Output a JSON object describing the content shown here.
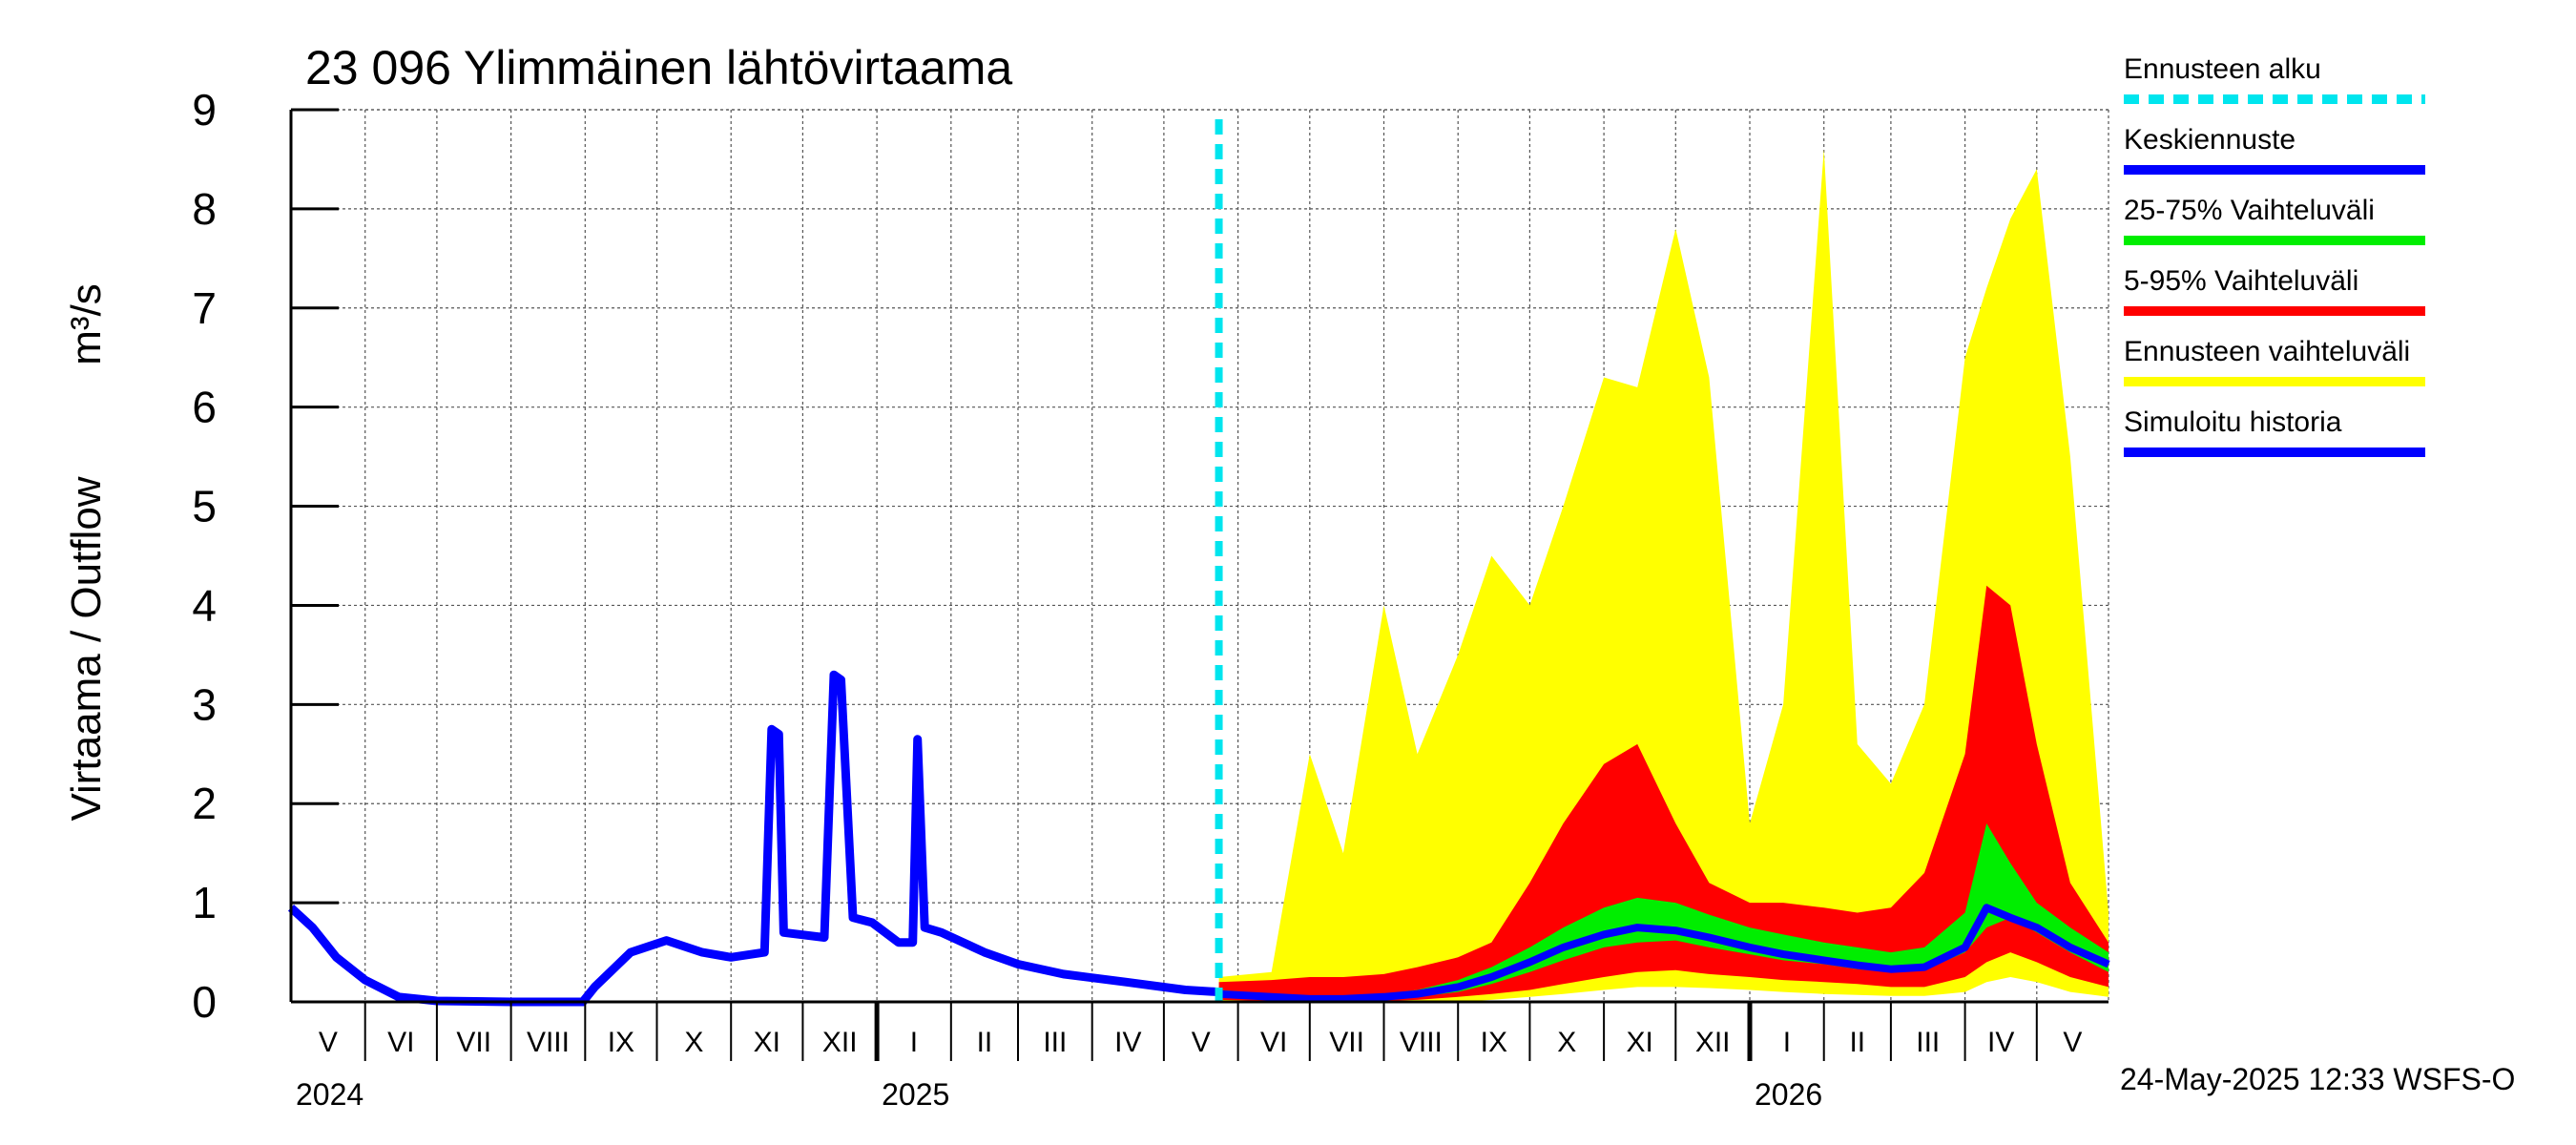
{
  "chart_data": {
    "type": "area",
    "title": "23 096 Ylimmäinen lähtövirtaama",
    "ylabel_fi": "Virtaama / Outflow",
    "ylabel_unit": "m³/s",
    "ylim": [
      0,
      9
    ],
    "yticks": [
      "0",
      "1",
      "2",
      "3",
      "4",
      "5",
      "6",
      "7",
      "8",
      "9"
    ],
    "x_range": [
      "2024-05-01",
      "2026-05-31"
    ],
    "grid": true,
    "forecast_start": "2025-05-24",
    "months": [
      "V",
      "VI",
      "VII",
      "VIII",
      "IX",
      "X",
      "XI",
      "XII",
      "I",
      "II",
      "III",
      "IV",
      "V",
      "VI",
      "VII",
      "VIII",
      "IX",
      "X",
      "XI",
      "XII",
      "I",
      "II",
      "III",
      "IV",
      "V"
    ],
    "years": [
      {
        "label": "2024",
        "month_index": 0
      },
      {
        "label": "2025",
        "month_index": 8
      },
      {
        "label": "2026",
        "month_index": 20
      }
    ],
    "legend_placement": "right",
    "legend": [
      {
        "label": "Ennusteen alku",
        "color": "#00e5ee",
        "style": "dashed"
      },
      {
        "label": "Keskiennuste",
        "color": "#0000ff",
        "style": "solid"
      },
      {
        "label": "25-75% Vaihteluväli",
        "color": "#00ee00",
        "style": "solid"
      },
      {
        "label": "5-95% Vaihteluväli",
        "color": "#ff0000",
        "style": "solid"
      },
      {
        "label": "Ennusteen vaihteluväli",
        "color": "#ffff00",
        "style": "solid"
      },
      {
        "label": "Simuloitu historia",
        "color": "#0000ff",
        "style": "solid"
      }
    ],
    "history": {
      "name": "Simuloitu historia",
      "x": [
        "2024-05-01",
        "2024-05-10",
        "2024-05-20",
        "2024-06-01",
        "2024-06-15",
        "2024-07-01",
        "2024-08-01",
        "2024-08-31",
        "2024-09-05",
        "2024-09-20",
        "2024-10-05",
        "2024-10-20",
        "2024-11-01",
        "2024-11-15",
        "2024-11-18",
        "2024-11-21",
        "2024-11-23",
        "2024-12-10",
        "2024-12-14",
        "2024-12-17",
        "2024-12-22",
        "2024-12-30",
        "2025-01-10",
        "2025-01-16",
        "2025-01-18",
        "2025-01-21",
        "2025-01-28",
        "2025-02-15",
        "2025-03-01",
        "2025-03-20",
        "2025-04-15",
        "2025-05-10",
        "2025-05-24"
      ],
      "y": [
        0.95,
        0.75,
        0.45,
        0.22,
        0.05,
        0.01,
        0.0,
        0.0,
        0.15,
        0.5,
        0.62,
        0.5,
        0.45,
        0.5,
        2.75,
        2.7,
        0.7,
        0.65,
        3.3,
        3.25,
        0.85,
        0.8,
        0.6,
        0.6,
        2.65,
        0.75,
        0.7,
        0.5,
        0.38,
        0.28,
        0.2,
        0.12,
        0.1
      ]
    },
    "forecast": {
      "x": [
        "2025-05-24",
        "2025-06-15",
        "2025-07-01",
        "2025-07-15",
        "2025-08-01",
        "2025-08-15",
        "2025-09-01",
        "2025-09-15",
        "2025-10-01",
        "2025-10-15",
        "2025-11-01",
        "2025-11-15",
        "2025-12-01",
        "2025-12-15",
        "2026-01-01",
        "2026-01-15",
        "2026-02-01",
        "2026-02-15",
        "2026-03-01",
        "2026-03-15",
        "2026-04-01",
        "2026-04-10",
        "2026-04-20",
        "2026-05-01",
        "2026-05-15",
        "2026-05-31"
      ],
      "min": [
        0.0,
        0.0,
        0.0,
        0.0,
        0.0,
        0.0,
        0.0,
        0.02,
        0.05,
        0.08,
        0.12,
        0.15,
        0.15,
        0.14,
        0.12,
        0.1,
        0.08,
        0.07,
        0.06,
        0.06,
        0.1,
        0.2,
        0.25,
        0.2,
        0.1,
        0.05
      ],
      "p05": [
        0.02,
        0.01,
        0.0,
        0.0,
        0.01,
        0.02,
        0.05,
        0.08,
        0.12,
        0.18,
        0.25,
        0.3,
        0.32,
        0.28,
        0.25,
        0.22,
        0.2,
        0.18,
        0.15,
        0.15,
        0.25,
        0.4,
        0.5,
        0.4,
        0.25,
        0.15
      ],
      "p25": [
        0.05,
        0.03,
        0.02,
        0.02,
        0.03,
        0.05,
        0.1,
        0.18,
        0.3,
        0.42,
        0.55,
        0.6,
        0.62,
        0.55,
        0.48,
        0.42,
        0.38,
        0.33,
        0.3,
        0.32,
        0.5,
        0.75,
        0.85,
        0.7,
        0.5,
        0.3
      ],
      "median": [
        0.08,
        0.05,
        0.03,
        0.03,
        0.05,
        0.08,
        0.15,
        0.25,
        0.4,
        0.55,
        0.68,
        0.75,
        0.72,
        0.65,
        0.55,
        0.48,
        0.42,
        0.37,
        0.33,
        0.35,
        0.55,
        0.95,
        0.85,
        0.75,
        0.55,
        0.38
      ],
      "p75": [
        0.12,
        0.08,
        0.06,
        0.06,
        0.08,
        0.12,
        0.22,
        0.35,
        0.55,
        0.75,
        0.95,
        1.05,
        1.0,
        0.88,
        0.75,
        0.68,
        0.6,
        0.55,
        0.5,
        0.55,
        0.9,
        1.8,
        1.4,
        1.0,
        0.75,
        0.5
      ],
      "p95": [
        0.2,
        0.22,
        0.25,
        0.25,
        0.28,
        0.35,
        0.45,
        0.6,
        1.2,
        1.8,
        2.4,
        2.6,
        1.8,
        1.2,
        1.0,
        1.0,
        0.95,
        0.9,
        0.95,
        1.3,
        2.5,
        4.2,
        4.0,
        2.6,
        1.2,
        0.6
      ],
      "max": [
        0.25,
        0.3,
        2.5,
        1.5,
        4.0,
        2.5,
        3.5,
        4.5,
        4.0,
        5.0,
        6.3,
        6.2,
        7.8,
        6.3,
        1.8,
        3.0,
        8.6,
        2.6,
        2.2,
        3.0,
        6.5,
        7.2,
        7.9,
        8.4,
        5.5,
        0.9
      ]
    }
  },
  "footer": "24-May-2025 12:33 WSFS-O"
}
